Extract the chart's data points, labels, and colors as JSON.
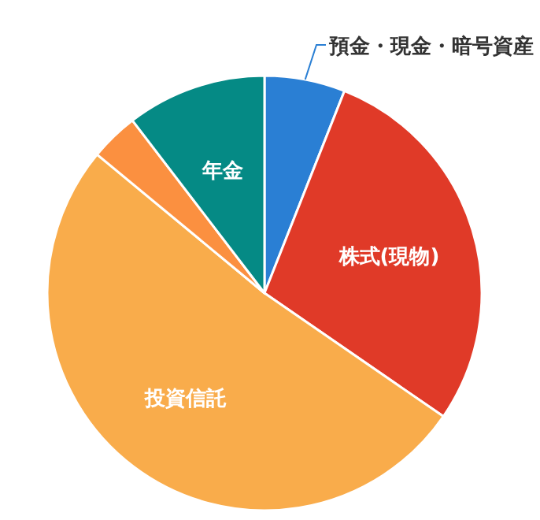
{
  "chart_data": {
    "type": "pie",
    "categories": [
      "預金・現金・暗号資産",
      "株式(現物)",
      "投資信託",
      null,
      "年金"
    ],
    "values": [
      6,
      28.6,
      51.4,
      3.6,
      10.4
    ],
    "colors": [
      "#2a7fd4",
      "#e03a28",
      "#f9ac4b",
      "#fb9040",
      "#058a85"
    ]
  }
}
